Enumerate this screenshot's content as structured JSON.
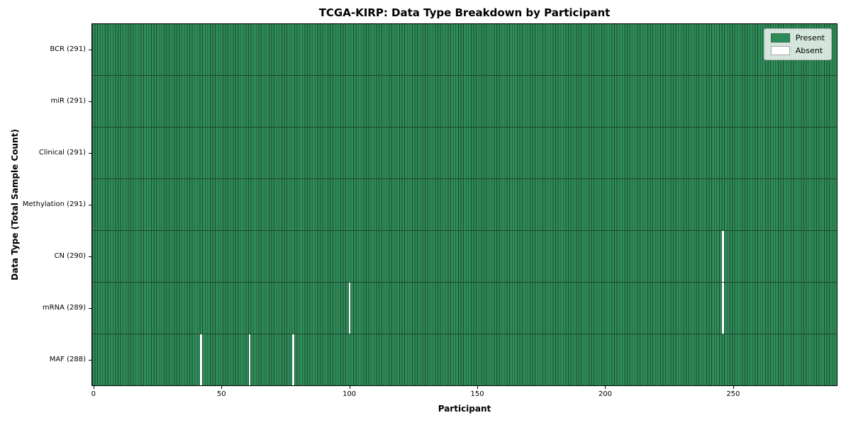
{
  "chart_data": {
    "type": "heatmap",
    "title": "TCGA-KIRP: Data Type Breakdown by Participant",
    "xlabel": "Participant",
    "ylabel": "Data Type (Total Sample Count)",
    "x_ticks": [
      0,
      50,
      100,
      150,
      200,
      250
    ],
    "xlim": [
      -0.5,
      290.5
    ],
    "n_participants": 291,
    "legend_position": "upper right",
    "rows": [
      {
        "data_type": "BCR",
        "label": "BCR (291)",
        "present_count": 291,
        "absent_participants": []
      },
      {
        "data_type": "miR",
        "label": "miR (291)",
        "present_count": 291,
        "absent_participants": []
      },
      {
        "data_type": "Clinical",
        "label": "Clinical (291)",
        "present_count": 291,
        "absent_participants": []
      },
      {
        "data_type": "Methylation",
        "label": "Methylation (291)",
        "present_count": 291,
        "absent_participants": []
      },
      {
        "data_type": "CN",
        "label": "CN (290)",
        "present_count": 290,
        "absent_participants": [
          246
        ]
      },
      {
        "data_type": "mRNA",
        "label": "mRNA (289)",
        "present_count": 289,
        "absent_participants": [
          100,
          246
        ]
      },
      {
        "data_type": "MAF",
        "label": "MAF (288)",
        "present_count": 288,
        "absent_participants": [
          42,
          61,
          78
        ]
      }
    ],
    "legend": [
      {
        "label": "Present",
        "color": "#2e8b57"
      },
      {
        "label": "Absent",
        "color": "#ffffff"
      }
    ],
    "colors": {
      "present": "#2e8b57",
      "absent": "#ffffff",
      "cell_edge": "#1d4a33",
      "row_divider": "#1d4530",
      "plot_border": "#000000"
    }
  }
}
